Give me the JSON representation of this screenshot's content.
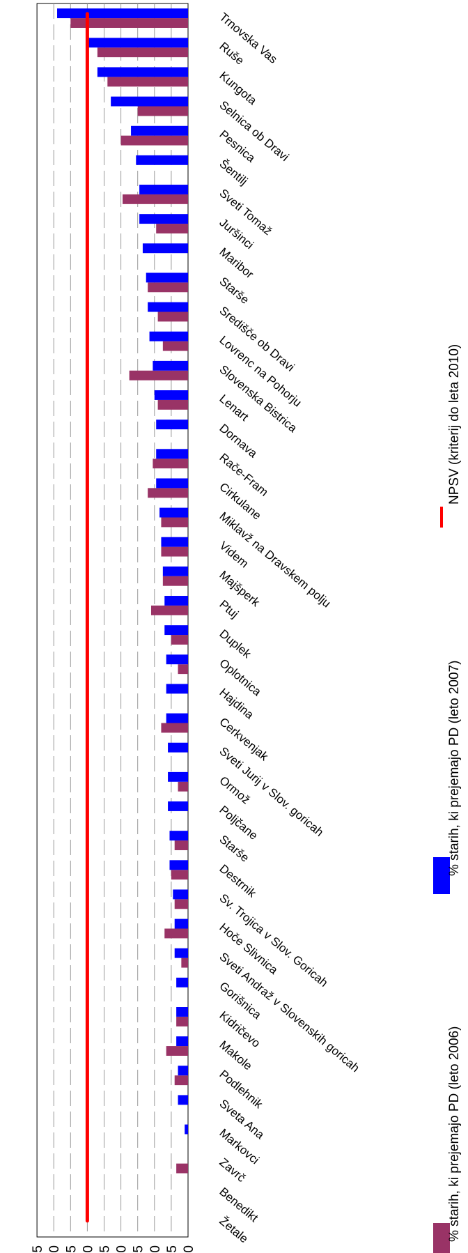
{
  "chart_data": {
    "type": "bar",
    "orientation": "horizontal-rotated",
    "grid": true,
    "ylim": [
      0,
      4.5
    ],
    "yticks": [
      "0,0",
      "0,5",
      "1,0",
      "1,5",
      "2,0",
      "2,5",
      "3,0",
      "3,5",
      "4,0",
      "4,5"
    ],
    "categories": [
      "Trnovska Vas",
      "Ruše",
      "Kungota",
      "Selnica ob Dravi",
      "Pesnica",
      "Šentilj",
      "Sveti Tomaž",
      "Juršinci",
      "Maribor",
      "Starše",
      "Središče ob Dravi",
      "Lovrenc na Pohorju",
      "Slovenska Bistrica",
      "Lenart",
      "Dornava",
      "Rače-Fram",
      "Cirkulane",
      "Miklavž na Dravskem polju",
      "Videm",
      "Majšperk",
      "Ptuj",
      "Duplek",
      "Oplotnica",
      "Hajdina",
      "Cerkvenjak",
      "Sveti Jurij v Slov. goricah",
      "Ormož",
      "Poljčane",
      "Starše",
      "Destrnik",
      "Sv. Trojica v Slov. Goricah",
      "Hoče Slivnica",
      "Sveti Andraž v Slovenskih goricah",
      "Gorišnica",
      "Kidričevo",
      "Makole",
      "Podlehnik",
      "Sveta Ana",
      "Markovci",
      "Zavrč",
      "Benedikt",
      "Žetale"
    ],
    "series": [
      {
        "name": "% starih, ki prejemajo PD (leto 2006)",
        "color": "#993366",
        "values": [
          3.5,
          2.7,
          2.4,
          1.5,
          2.0,
          0,
          1.95,
          0.95,
          0,
          1.2,
          0.9,
          0.75,
          1.75,
          0.9,
          0,
          1.05,
          1.2,
          0.8,
          0.8,
          0.75,
          1.1,
          0.5,
          0.3,
          0,
          0.8,
          0,
          0.3,
          0,
          0.4,
          0.5,
          0.4,
          0.7,
          0.2,
          0,
          0.35,
          0.65,
          0.4,
          0,
          0,
          0.35,
          0,
          0
        ]
      },
      {
        "name": "% starih, ki prejemajo PD (leto 2007)",
        "color": "#0000FF",
        "values": [
          3.9,
          3.0,
          2.7,
          2.3,
          1.7,
          1.55,
          1.45,
          1.45,
          1.35,
          1.25,
          1.2,
          1.15,
          1.05,
          1.0,
          0.95,
          0.95,
          0.95,
          0.85,
          0.8,
          0.75,
          0.7,
          0.7,
          0.65,
          0.65,
          0.65,
          0.6,
          0.6,
          0.6,
          0.55,
          0.55,
          0.45,
          0.4,
          0.4,
          0.35,
          0.35,
          0.35,
          0.3,
          0.3,
          0.1,
          0,
          0,
          0
        ]
      }
    ],
    "line": {
      "name": "NPSV  (kriterij do leta 2010)",
      "value": 3.0,
      "color": "#FF0000"
    }
  }
}
